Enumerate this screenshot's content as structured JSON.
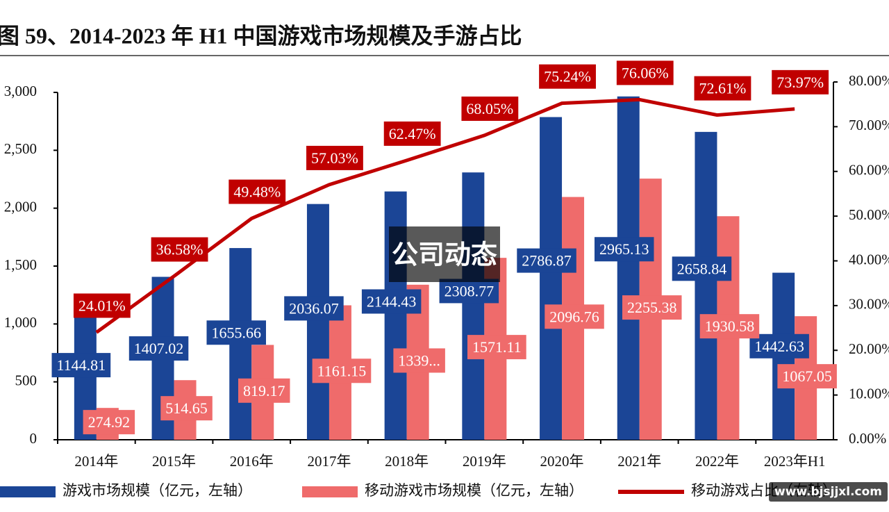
{
  "chart_data": {
    "type": "bar-line",
    "title": "图 59、2014-2023 年 H1 中国游戏市场规模及手游占比",
    "categories": [
      "2014年",
      "2015年",
      "2016年",
      "2017年",
      "2018年",
      "2019年",
      "2020年",
      "2021年",
      "2022年",
      "2023年H1"
    ],
    "series": [
      {
        "name": "游戏市场规模（亿元，左轴）",
        "color": "#1b4596",
        "type": "bar",
        "values": [
          1144.81,
          1407.02,
          1655.66,
          2036.07,
          2144.43,
          2308.77,
          2786.87,
          2965.13,
          2658.84,
          1442.63
        ]
      },
      {
        "name": "移动游戏市场规模（亿元，左轴）",
        "color": "#ef6b6b",
        "type": "bar",
        "values": [
          274.92,
          514.65,
          819.17,
          1161.15,
          1339,
          1571.11,
          2096.76,
          2255.38,
          1930.58,
          1067.05
        ],
        "value_labels": [
          "274.92",
          "514.65",
          "819.17",
          "1161.15",
          "1339...",
          "1571.11",
          "2096.76",
          "2255.38",
          "1930.58",
          "1067.05"
        ]
      },
      {
        "name": "移动游戏占比（右轴）",
        "color": "#c00000",
        "type": "line",
        "axis": "y2",
        "values": [
          24.01,
          36.58,
          49.48,
          57.03,
          62.47,
          68.05,
          75.24,
          76.06,
          72.61,
          73.97
        ],
        "value_labels": [
          "24.01%",
          "36.58%",
          "49.48%",
          "57.03%",
          "62.47%",
          "68.05%",
          "75.24%",
          "76.06%",
          "72.61%",
          "73.97%"
        ]
      }
    ],
    "ylim": [
      0,
      3000
    ],
    "yticks": [
      0,
      500,
      {
        "value": 1000,
        "label": "1,000"
      },
      {
        "value": 1500,
        "label": "1,500"
      },
      {
        "value": 2000,
        "label": "2,000"
      },
      {
        "value": 2500,
        "label": "2,500"
      },
      {
        "value": 3000,
        "label": "3,000"
      }
    ],
    "y2lim": [
      0,
      80
    ],
    "y2ticks": [
      {
        "value": 0,
        "label": "0.00%"
      },
      {
        "value": 10,
        "label": "10.00%"
      },
      {
        "value": 20,
        "label": "20.00%"
      },
      {
        "value": 30,
        "label": "30.00%"
      },
      {
        "value": 40,
        "label": "40.00%"
      },
      {
        "value": 50,
        "label": "50.00%"
      },
      {
        "value": 60,
        "label": "60.00%"
      },
      {
        "value": 70,
        "label": "70.00%"
      },
      {
        "value": 80,
        "label": "80.00%"
      }
    ],
    "watermark": "公司动态",
    "source_watermark": "www.bjsjjxl.com"
  }
}
